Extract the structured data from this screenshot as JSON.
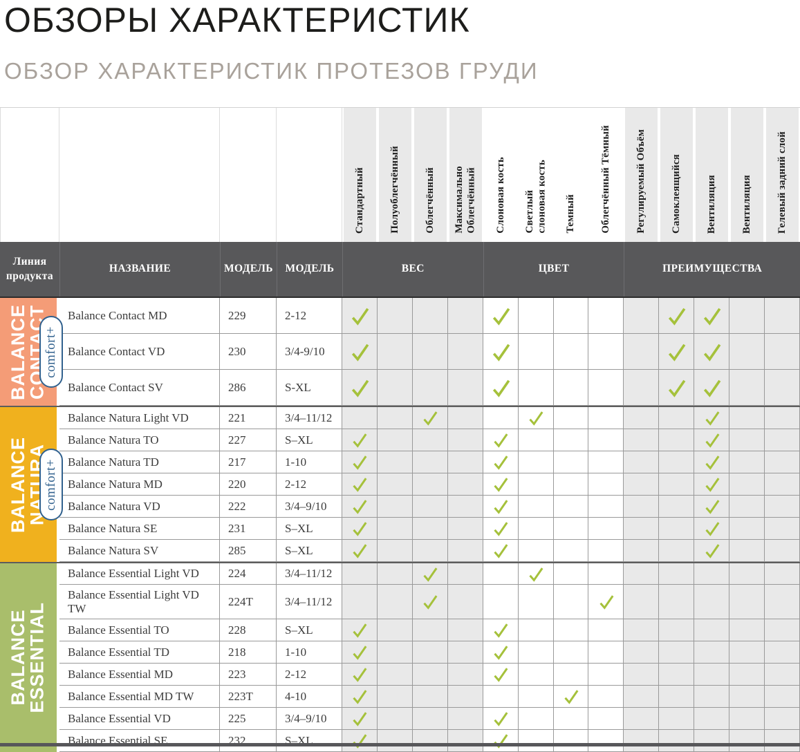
{
  "page": {
    "title": "ОБЗОРЫ ХАРАКТЕРИСТИК",
    "subtitle": "ОБЗОР ХАРАКТЕРИСТИК ПРОТЕЗОВ ГРУДИ"
  },
  "table": {
    "corner_columns": [
      "Линия продукта",
      "НАЗВАНИЕ",
      "МОДЕЛЬ",
      "МОДЕЛЬ"
    ],
    "groups": [
      {
        "label": "ВЕС"
      },
      {
        "label": "ЦВЕТ"
      },
      {
        "label": "ПРЕИМУЩЕСТВА"
      }
    ],
    "feature_columns": [
      {
        "label": "Стандартный",
        "group": "weight"
      },
      {
        "label": "Полуоблегчённый",
        "group": "weight"
      },
      {
        "label": "Облегчённый",
        "group": "weight"
      },
      {
        "label": "Максимально\nОблегчённый",
        "group": "weight"
      },
      {
        "label": "Слоновая кость",
        "group": "color"
      },
      {
        "label": "Светлый\nслоновая кость",
        "group": "color"
      },
      {
        "label": "Темный",
        "group": "color"
      },
      {
        "label": "Облегчённый Тёмный",
        "group": "color"
      },
      {
        "label": "Регулируемый Объём",
        "group": "benefit"
      },
      {
        "label": "Самоклеящийся",
        "group": "benefit"
      },
      {
        "label": "Вентиляция",
        "group": "benefit"
      },
      {
        "label": "Вентиляция",
        "group": "benefit"
      },
      {
        "label": "Гелевый задний слой",
        "group": "benefit"
      }
    ],
    "sections": [
      {
        "id": "contact",
        "name": "BALANCE\nCONTACT",
        "badge": "comfort+",
        "color": "#F49C77",
        "rows": [
          {
            "name": "Balance Contact MD",
            "model": "229",
            "size": "2-12",
            "checks": [
              1,
              5,
              10,
              11
            ]
          },
          {
            "name": "Balance Contact VD",
            "model": "230",
            "size": "3/4-9/10",
            "checks": [
              1,
              5,
              10,
              11
            ]
          },
          {
            "name": "Balance Contact SV",
            "model": "286",
            "size": "S-XL",
            "checks": [
              1,
              5,
              10,
              11
            ]
          }
        ]
      },
      {
        "id": "natura",
        "name": "BALANCE\nNATURA",
        "badge": "comfort+",
        "color": "#F0B11E",
        "rows": [
          {
            "name": "Balance Natura Light VD",
            "model": "221",
            "size": "3/4–11/12",
            "checks": [
              3,
              6,
              11
            ]
          },
          {
            "name": "Balance Natura TO",
            "model": "227",
            "size": "S–XL",
            "checks": [
              1,
              5,
              11
            ]
          },
          {
            "name": "Balance Natura TD",
            "model": "217",
            "size": "1-10",
            "checks": [
              1,
              5,
              11
            ]
          },
          {
            "name": "Balance Natura MD",
            "model": "220",
            "size": "2-12",
            "checks": [
              1,
              5,
              11
            ]
          },
          {
            "name": "Balance Natura VD",
            "model": "222",
            "size": "3/4–9/10",
            "checks": [
              1,
              5,
              11
            ]
          },
          {
            "name": "Balance Natura SE",
            "model": "231",
            "size": "S–XL",
            "checks": [
              1,
              5,
              11
            ]
          },
          {
            "name": "Balance Natura SV",
            "model": "285",
            "size": "S–XL",
            "checks": [
              1,
              5,
              11
            ]
          }
        ]
      },
      {
        "id": "essential",
        "name": "BALANCE\nESSENTIAL",
        "badge": null,
        "color": "#A9BE6B",
        "rows": [
          {
            "name": "Balance Essential Light VD",
            "model": "224",
            "size": "3/4–11/12",
            "checks": [
              3,
              6
            ]
          },
          {
            "name": "Balance Essential Light VD TW",
            "model": "224T",
            "size": "3/4–11/12",
            "checks": [
              3,
              8
            ]
          },
          {
            "name": "Balance Essential TO",
            "model": "228",
            "size": "S–XL",
            "checks": [
              1,
              5
            ]
          },
          {
            "name": "Balance Essential TD",
            "model": "218",
            "size": "1-10",
            "checks": [
              1,
              5
            ]
          },
          {
            "name": "Balance Essential MD",
            "model": "223",
            "size": "2-12",
            "checks": [
              1,
              5
            ]
          },
          {
            "name": "Balance Essential MD TW",
            "model": "223T",
            "size": "4-10",
            "checks": [
              1,
              7
            ]
          },
          {
            "name": "Balance Essential VD",
            "model": "225",
            "size": "3/4–9/10",
            "checks": [
              1,
              5
            ]
          },
          {
            "name": "Balance Essential SE",
            "model": "232",
            "size": "S–XL",
            "checks": [
              1,
              5
            ]
          }
        ]
      }
    ],
    "colors": {
      "check": "#A5C13B",
      "band": "#58585A",
      "cell_gray": "#E9E9E9",
      "badge_blue": "#31618E",
      "contact": "#F49C77",
      "natura": "#F0B11E",
      "essential": "#A9BE6B"
    }
  }
}
